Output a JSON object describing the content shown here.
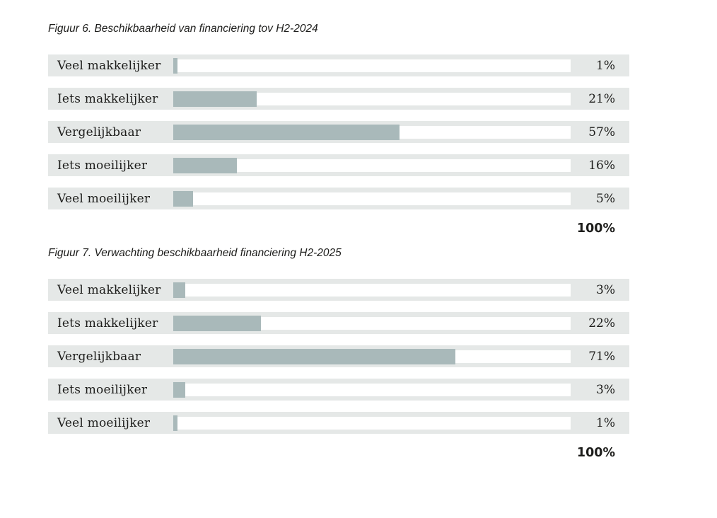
{
  "colors": {
    "page_background": "#ffffff",
    "row_background": "#e5e8e7",
    "bar_track": "#ffffff",
    "bar_fill": "#a9b9ba",
    "text": "#1d1d1b"
  },
  "chart_data": [
    {
      "type": "bar",
      "orientation": "horizontal",
      "title": "Figuur 6. Beschikbaarheid van financiering tov H2-2024",
      "categories": [
        "Veel makkelijker",
        "Iets makkelijker",
        "Vergelijkbaar",
        "Iets moeilijker",
        "Veel moeilijker"
      ],
      "values": [
        1,
        21,
        57,
        16,
        5
      ],
      "value_labels": [
        "1%",
        "21%",
        "57%",
        "16%",
        "5%"
      ],
      "total_label": "100%",
      "unit": "percent",
      "xlim": [
        0,
        100
      ],
      "grid": false,
      "legend": false
    },
    {
      "type": "bar",
      "orientation": "horizontal",
      "title": "Figuur 7. Verwachting beschikbaarheid financiering H2-2025",
      "categories": [
        "Veel makkelijker",
        "Iets makkelijker",
        "Vergelijkbaar",
        "Iets moeilijker",
        "Veel moeilijker"
      ],
      "values": [
        3,
        22,
        71,
        3,
        1
      ],
      "value_labels": [
        "3%",
        "22%",
        "71%",
        "3%",
        "1%"
      ],
      "total_label": "100%",
      "unit": "percent",
      "xlim": [
        0,
        100
      ],
      "grid": false,
      "legend": false
    }
  ]
}
